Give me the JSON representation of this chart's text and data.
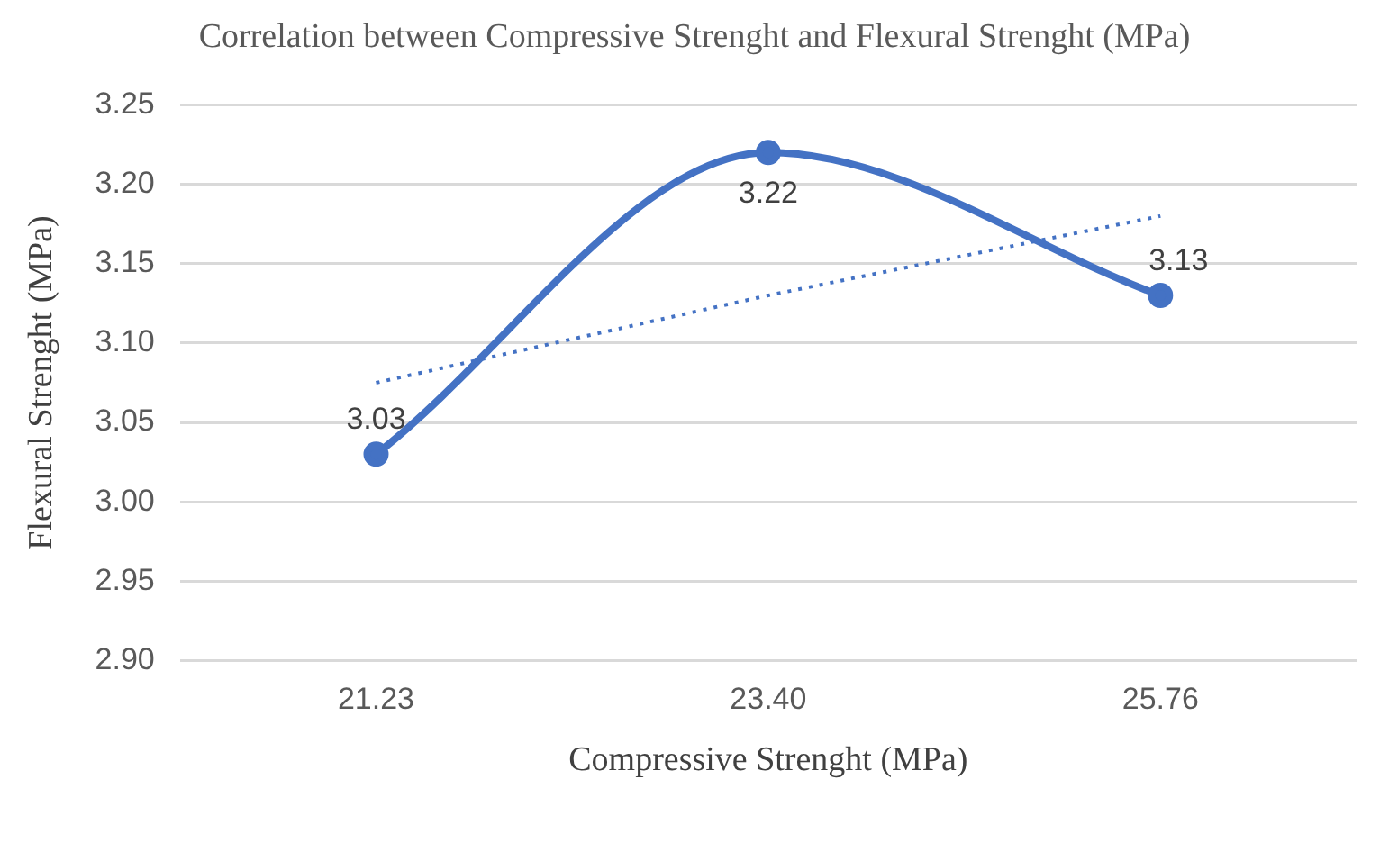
{
  "chart_data": {
    "type": "line",
    "title": "Correlation between Compressive Strenght and Flexural Strenght (MPa)",
    "xlabel": "Compressive Strenght (MPa)",
    "ylabel": "Flexural Strenght (MPa)",
    "categories": [
      "21.23",
      "23.40",
      "25.76"
    ],
    "series": [
      {
        "color": "#4472c4",
        "values": [
          3.03,
          3.22,
          3.13
        ],
        "value_labels": [
          "3.03",
          "3.22",
          "3.13"
        ],
        "marker": "circle",
        "line_style": "solid"
      },
      {
        "type": "line",
        "color": "#4472c4",
        "values": [
          3.075,
          3.13,
          3.18
        ],
        "marker": "none",
        "line_style": "dotted"
      }
    ],
    "ylim": [
      2.9,
      3.25
    ],
    "yticks": [
      {
        "value": 2.9,
        "label": "2.90"
      },
      {
        "value": 2.95,
        "label": "2.95"
      },
      {
        "value": 3.0,
        "label": "3.00"
      },
      {
        "value": 3.05,
        "label": "3.05"
      },
      {
        "value": 3.1,
        "label": "3.10"
      },
      {
        "value": 3.15,
        "label": "3.15"
      },
      {
        "value": 3.2,
        "label": "3.20"
      },
      {
        "value": 3.25,
        "label": "3.25"
      }
    ],
    "grid": "y",
    "legend": false
  }
}
